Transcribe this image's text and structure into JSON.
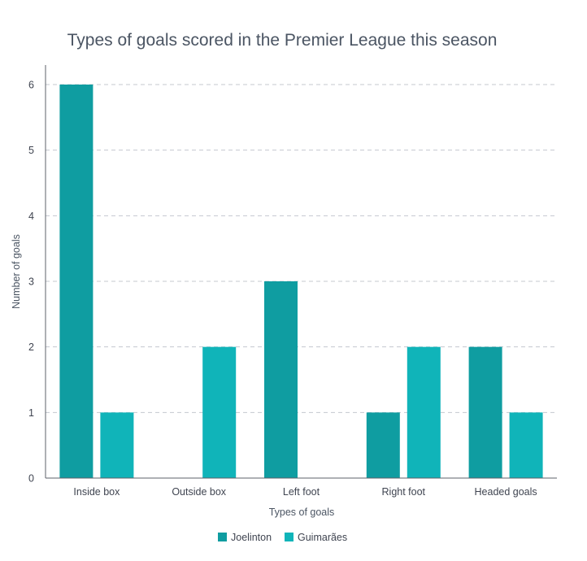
{
  "colors": {
    "joelinton": "#0f9da1",
    "guimaraes": "#10b4b9",
    "axis": "#5c6068",
    "grid": "#c4c8cf"
  },
  "chart_data": {
    "type": "bar",
    "title": "Types of goals scored in the Premier League this season",
    "xlabel": "Types of goals",
    "ylabel": "Number of goals",
    "categories": [
      "Inside box",
      "Outside box",
      "Left foot",
      "Right foot",
      "Headed goals"
    ],
    "series": [
      {
        "name": "Joelinton",
        "color": "#0f9da1",
        "values": [
          6,
          0,
          3,
          1,
          2
        ]
      },
      {
        "name": "Guimarães",
        "color": "#10b4b9",
        "values": [
          1,
          2,
          0,
          2,
          1
        ]
      }
    ],
    "ylim": [
      0,
      6
    ],
    "yticks": [
      "0",
      "1",
      "2",
      "3",
      "4",
      "5",
      "6"
    ],
    "grid": true,
    "legend_position": "bottom-center"
  }
}
